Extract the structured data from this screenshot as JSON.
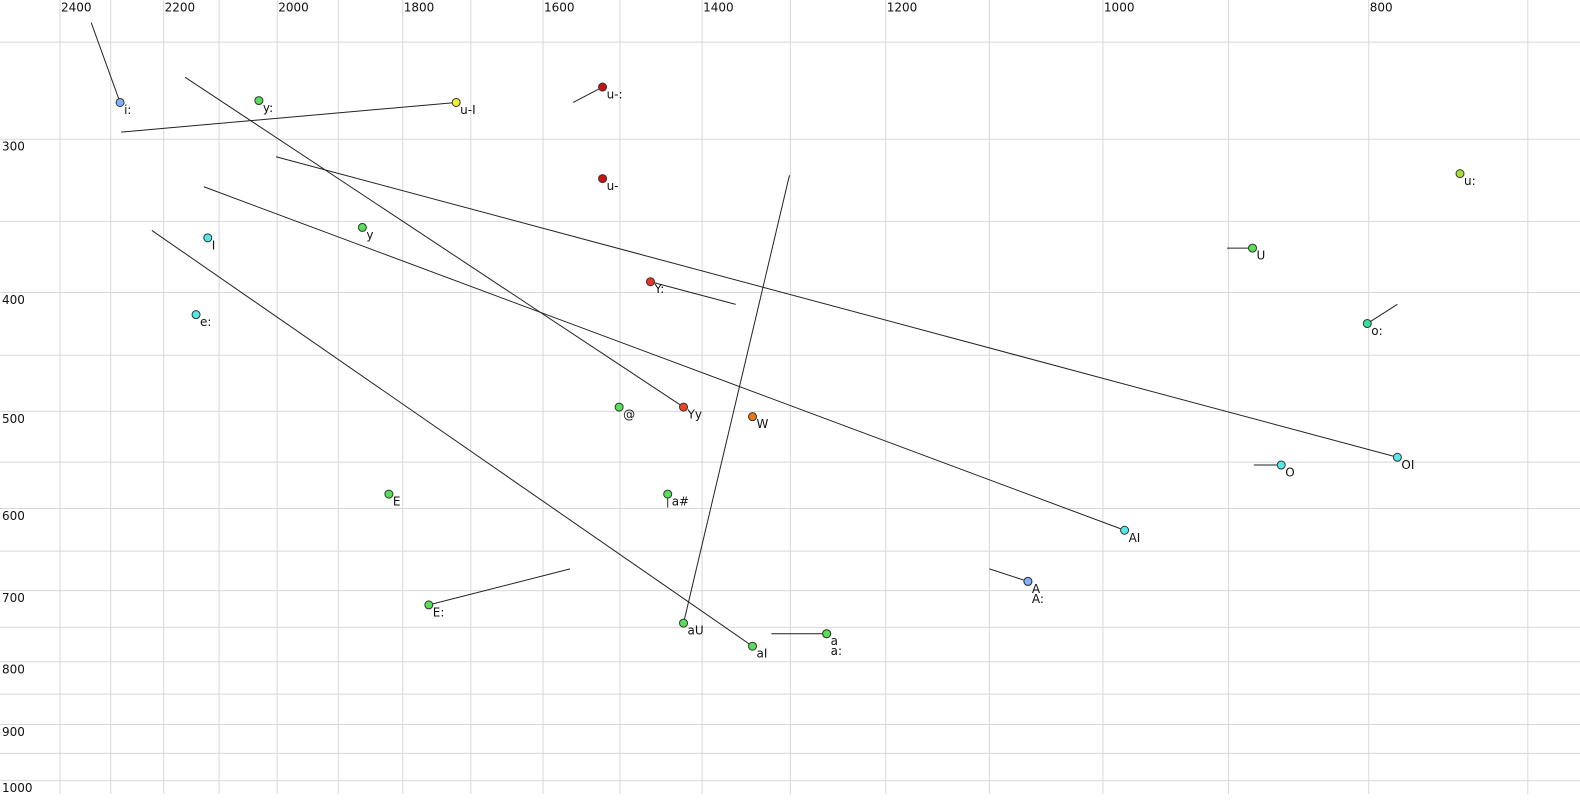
{
  "chart_data": {
    "type": "scatter",
    "xscale": "log",
    "yscale": "log",
    "xlim": [
      2524,
      670
    ],
    "ylim": [
      231,
      1037
    ],
    "xticks": [
      2400,
      2200,
      2000,
      1800,
      1600,
      1400,
      1200,
      1000,
      800
    ],
    "yticks": [
      300,
      400,
      500,
      600,
      700,
      800,
      900,
      1000
    ],
    "xgrid": [
      2400,
      2300,
      2200,
      2100,
      2000,
      1900,
      1800,
      1700,
      1600,
      1500,
      1400,
      1300,
      1200,
      1100,
      1000,
      900,
      800,
      700
    ],
    "ygrid": [
      250,
      300,
      350,
      400,
      450,
      500,
      550,
      600,
      650,
      700,
      750,
      800,
      850,
      900,
      950,
      1000
    ],
    "grid": true,
    "points": [
      {
        "label": "i:",
        "color": "#7fb2ff",
        "x": 2282,
        "y": 280,
        "x_end": 2338,
        "y_end": 241
      },
      {
        "label": "y:",
        "color": "#55e055",
        "x": 2031,
        "y": 279
      },
      {
        "label": "u-I",
        "color": "#f0f030",
        "x": 1721,
        "y": 280,
        "x_end": 2280,
        "y_end": 296
      },
      {
        "label": "u-:",
        "color": "#cc1111",
        "x": 1522,
        "y": 272,
        "x_end": 1560,
        "y_end": 280
      },
      {
        "label": "u-",
        "color": "#cc1111",
        "x": 1522,
        "y": 323
      },
      {
        "label": "u:",
        "color": "#a0e030",
        "x": 741,
        "y": 320
      },
      {
        "label": "I",
        "color": "#55e8e8",
        "x": 2120,
        "y": 361
      },
      {
        "label": "y",
        "color": "#55e055",
        "x": 1862,
        "y": 354
      },
      {
        "label": "U",
        "color": "#55e055",
        "x": 882,
        "y": 368,
        "x_end": 901,
        "y_end": 368
      },
      {
        "label": "Y:",
        "color": "#ee3322",
        "x": 1462,
        "y": 392,
        "x_end": 1361,
        "y_end": 409
      },
      {
        "label": "e:",
        "color": "#55e8e8",
        "x": 2141,
        "y": 417
      },
      {
        "label": "o:",
        "color": "#33e099",
        "x": 801,
        "y": 424,
        "x_end": 781,
        "y_end": 409
      },
      {
        "label": "@",
        "color": "#55e055",
        "x": 1501,
        "y": 496
      },
      {
        "label": "Yy",
        "color": "#ee4422",
        "x": 1422,
        "y": 496,
        "x_end": 2161,
        "y_end": 267
      },
      {
        "label": "W",
        "color": "#ee7711",
        "x": 1342,
        "y": 505
      },
      {
        "label": "OI",
        "color": "#55e8e8",
        "x": 781,
        "y": 545,
        "x_end": 2002,
        "y_end": 310
      },
      {
        "label": "O",
        "color": "#55e8e8",
        "x": 861,
        "y": 553,
        "x_end": 881,
        "y_end": 553
      },
      {
        "label": "E",
        "color": "#55e055",
        "x": 1821,
        "y": 584
      },
      {
        "label": "a#",
        "color": "#55e055",
        "x": 1441,
        "y": 584,
        "x_end": 1441,
        "y_end": 599
      },
      {
        "label": "AI",
        "color": "#55e8e8",
        "x": 982,
        "y": 625,
        "x_end": 2127,
        "y_end": 328
      },
      {
        "label": "A",
        "color": "#7fb2ff",
        "x": 1065,
        "y": 688,
        "x_end": 1100,
        "y_end": 672
      },
      {
        "label": "A:",
        "color": "#7fb2ff",
        "x": 1065,
        "y": 688
      },
      {
        "label": "E:",
        "color": "#55e055",
        "x": 1761,
        "y": 719,
        "x_end": 1564,
        "y_end": 672
      },
      {
        "label": "aU",
        "color": "#55e055",
        "x": 1422,
        "y": 744,
        "x_end": 1301,
        "y_end": 321
      },
      {
        "label": "a",
        "color": "#55e055",
        "x": 1261,
        "y": 759,
        "x_end": 1321,
        "y_end": 759
      },
      {
        "label": "a:",
        "color": "#55e055",
        "x": 1261,
        "y": 759
      },
      {
        "label": "aI",
        "color": "#55e055",
        "x": 1342,
        "y": 777,
        "x_end": 2222,
        "y_end": 356
      }
    ]
  }
}
